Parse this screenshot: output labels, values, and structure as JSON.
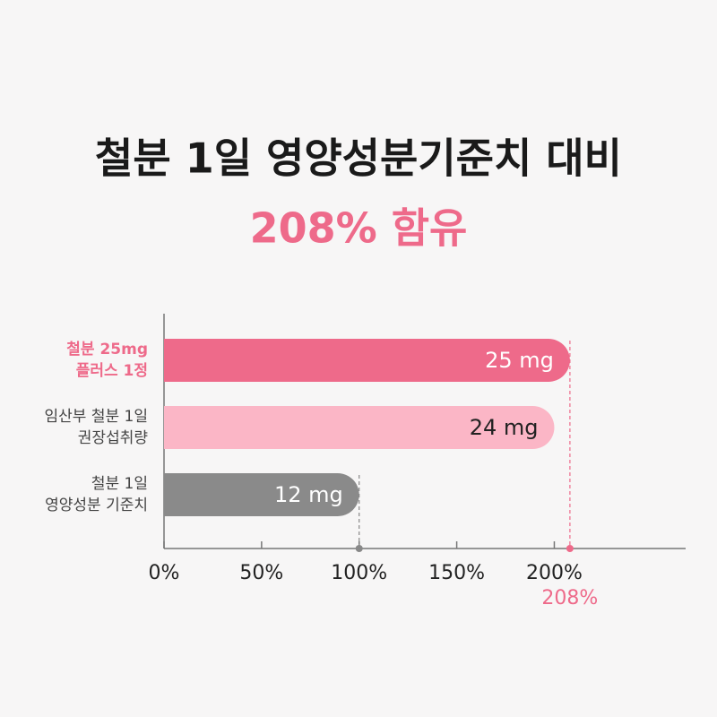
{
  "chart_data": {
    "type": "bar",
    "orientation": "horizontal",
    "title": "철분 1일 영양성분기준치 대비",
    "subtitle": "208% 함유",
    "categories": [
      [
        "철분 25mg",
        "플러스 1정"
      ],
      [
        "임산부 철분 1일",
        "권장섭취량"
      ],
      [
        "철분 1일",
        "영양성분 기준치"
      ]
    ],
    "values": [
      208,
      200,
      100
    ],
    "value_labels": [
      "25 mg",
      "24 mg",
      "12 mg"
    ],
    "colors": [
      "#ee6a8a",
      "#fbb6c6",
      "#8a8a8a"
    ],
    "xlim": [
      0,
      265
    ],
    "xticks": [
      {
        "value": 0,
        "label": "0%"
      },
      {
        "value": 50,
        "label": "50%"
      },
      {
        "value": 100,
        "label": "100%"
      },
      {
        "value": 150,
        "label": "150%"
      },
      {
        "value": 200,
        "label": "200%"
      }
    ],
    "highlight_tick": {
      "value": 208,
      "label": "208%"
    }
  }
}
